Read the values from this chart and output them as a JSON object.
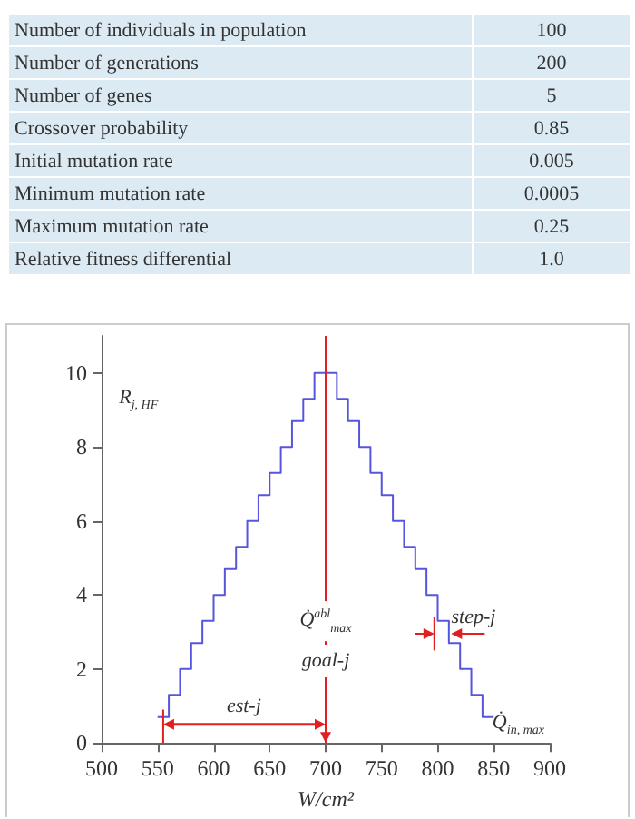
{
  "chart_data": [
    {
      "type": "other",
      "annotations": [
        "Number of individuals in population",
        "100",
        "Number of generations",
        "200",
        "Number of genes",
        "5",
        "Crossover probability",
        "0.85",
        "Initial mutation rate",
        "0.005",
        "Minimum mutation rate",
        "0.0005",
        "Maximum mutation rate",
        "0.25",
        "Relative fitness differential",
        "1.0"
      ]
    },
    {
      "type": "step",
      "x": [
        550,
        560,
        570,
        580,
        590,
        600,
        610,
        620,
        630,
        640,
        650,
        660,
        670,
        680,
        690,
        700,
        710,
        720,
        730,
        740,
        750,
        760,
        770,
        780,
        790,
        800,
        810,
        820,
        830,
        840,
        850
      ],
      "values": [
        0.7,
        1.3,
        2,
        2.7,
        3.3,
        4,
        4.7,
        5.3,
        6,
        6.7,
        7.3,
        8,
        8.7,
        9.3,
        10,
        10,
        9.3,
        8.7,
        8,
        7.3,
        6.7,
        6,
        5.3,
        4.7,
        4,
        3.3,
        2.7,
        2,
        1.3,
        0.7,
        0.7
      ],
      "color": "#5555dd",
      "xlabel": "W/cm²",
      "ylabel": "R$_{j, HF}$",
      "xlim": [
        500,
        900
      ],
      "xticks": [
        500,
        550,
        600,
        650,
        700,
        750,
        800,
        850,
        900
      ],
      "ylim": [
        0,
        11
      ],
      "yticks": [
        0,
        2,
        4,
        6,
        8,
        10
      ],
      "grid": false,
      "ref_lines": [
        {
          "axis": "x",
          "value": 700,
          "color": "#e02020"
        }
      ],
      "annotations": [
        "Q̇$^{abl}$$_{max}$",
        "goal-j",
        "est-j",
        "step-j",
        "Q̇$_{in, max}$"
      ]
    }
  ]
}
